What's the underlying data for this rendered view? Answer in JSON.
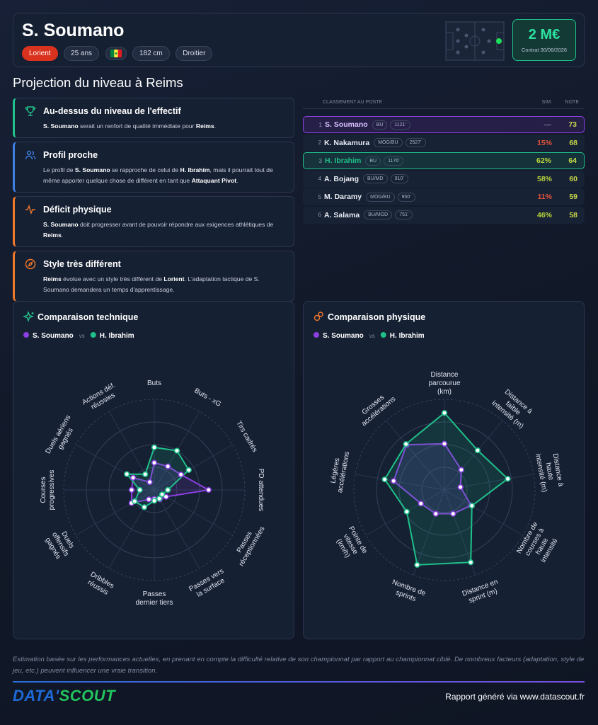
{
  "header": {
    "name": "S. Soumano",
    "club": "Lorient",
    "age": "25 ans",
    "height": "182 cm",
    "foot": "Droitier",
    "value": "2 M€",
    "contract": "Contrat 30/06/2026"
  },
  "section_title": "Projection du niveau à Reims",
  "insights": [
    {
      "title": "Au-dessus du niveau de l'effectif",
      "color": "#22c08a",
      "body": [
        {
          "strong": "S. Soumano"
        },
        " serait un renfort de qualité immédiate pour ",
        {
          "strong": "Reims"
        },
        "."
      ]
    },
    {
      "title": "Profil proche",
      "color": "#3f7fe0",
      "body": [
        "Le profil de ",
        {
          "strong": "S. Soumano"
        },
        " se rapproche de celui de ",
        {
          "strong": "H. Ibrahim"
        },
        ", mais il pourrait tout de même apporter quelque chose de différent en tant que ",
        {
          "strong": "Attaquant Pivot"
        },
        "."
      ]
    },
    {
      "title": "Déficit physique",
      "color": "#f0782a",
      "body": [
        {
          "strong": "S. Soumano"
        },
        " doit progresser avant de pouvoir répondre aux exigences athlétiques de ",
        {
          "strong": "Reims"
        },
        "."
      ]
    },
    {
      "title": "Style très différent",
      "color": "#f0782a",
      "body": [
        {
          "strong": "Reims"
        },
        " évolue avec un style très différent de ",
        {
          "strong": "Lorient"
        },
        ". L'adaptation tactique de S. Soumano demandera un temps d'apprentissage."
      ]
    }
  ],
  "ranking": {
    "heading": "CLASSEMENT AU POSTE",
    "sim_heading": "SIM.",
    "note_heading": "NOTE",
    "rows": [
      {
        "rank": 1,
        "name": "S. Soumano",
        "positions": "BU",
        "minutes": "1121'",
        "sim": "—",
        "note": 73,
        "color": "#8b3fe0",
        "sim_color": "#7c859a"
      },
      {
        "rank": 2,
        "name": "K. Nakamura",
        "positions": "MOG/BU",
        "minutes": "2527'",
        "sim": "15%",
        "note": 68,
        "sim_color": "#e0523a"
      },
      {
        "rank": 3,
        "name": "H. Ibrahim",
        "positions": "BU",
        "minutes": "1176'",
        "sim": "62%",
        "note": 64,
        "color": "#1fbf8a",
        "sim_color": "#b9d43a"
      },
      {
        "rank": 4,
        "name": "A. Bojang",
        "positions": "BU/MD",
        "minutes": "910'",
        "sim": "58%",
        "note": 60,
        "sim_color": "#b9d43a"
      },
      {
        "rank": 5,
        "name": "M. Daramy",
        "positions": "MOG/BU",
        "minutes": "950'",
        "sim": "11%",
        "note": 59,
        "sim_color": "#e0523a"
      },
      {
        "rank": 6,
        "name": "A. Salama",
        "positions": "BU/MOD",
        "minutes": "751'",
        "sim": "46%",
        "note": 58,
        "sim_color": "#b9d43a"
      }
    ]
  },
  "chart_data": [
    {
      "type": "radar",
      "title": "Comparaison technique",
      "vs": "vs",
      "categories": [
        "Buts",
        "Buts - xG",
        "Tirs cadrés",
        "PD attendues",
        "Passes réceptionnées",
        "Passes vers la surface",
        "Passes dernier tiers",
        "Dribbles réussis",
        "Duels offensifs gagnés",
        "Courses progressives",
        "Duels aériens gagnés",
        "Actions déf. réussies"
      ],
      "rlim": [
        0,
        100
      ],
      "rticks": [
        25,
        50,
        75,
        100
      ],
      "series": [
        {
          "name": "S. Soumano",
          "color": "#8b3fe0",
          "values": [
            30,
            30,
            34,
            60,
            15,
            12,
            10,
            12,
            29,
            25,
            27,
            10
          ]
        },
        {
          "name": "H. Ibrahim",
          "color": "#1fbf8a",
          "values": [
            47,
            50,
            44,
            15,
            10,
            11,
            12,
            22,
            25,
            16,
            35,
            20
          ]
        }
      ]
    },
    {
      "type": "radar",
      "title": "Comparaison physique",
      "vs": "vs",
      "categories": [
        "Distance parcourue (km)",
        "Distance à faible intensité (m)",
        "Distance à haute intensité (m)",
        "Nombre de courses à haute intensité",
        "Distance en sprint (m)",
        "Nombre de sprints",
        "Pointe de vitesse (km/h)",
        "Légères accélérations",
        "Grosses accélérations"
      ],
      "rlim": [
        0,
        100
      ],
      "rticks": [
        25,
        50,
        75,
        100
      ],
      "series": [
        {
          "name": "S. Soumano",
          "color": "#8b3fe0",
          "values": [
            51,
            29,
            18,
            34,
            28,
            28,
            30,
            57,
            65
          ]
        },
        {
          "name": "H. Ibrahim",
          "color": "#1fbf8a",
          "values": [
            85,
            57,
            71,
            35,
            85,
            88,
            48,
            67,
            66
          ]
        }
      ]
    }
  ],
  "disclaimer": "Estimation basée sur les performances actuelles, en prenant en compte la difficulté relative de son championnat par rapport au championnat ciblé. De nombreux facteurs (adaptation, style de jeu, etc.) peuvent influencer une vraie transition.",
  "footer": {
    "logo": [
      "DATA'",
      "SCOUT"
    ],
    "credit": "Rapport généré via www.datascout.fr"
  }
}
